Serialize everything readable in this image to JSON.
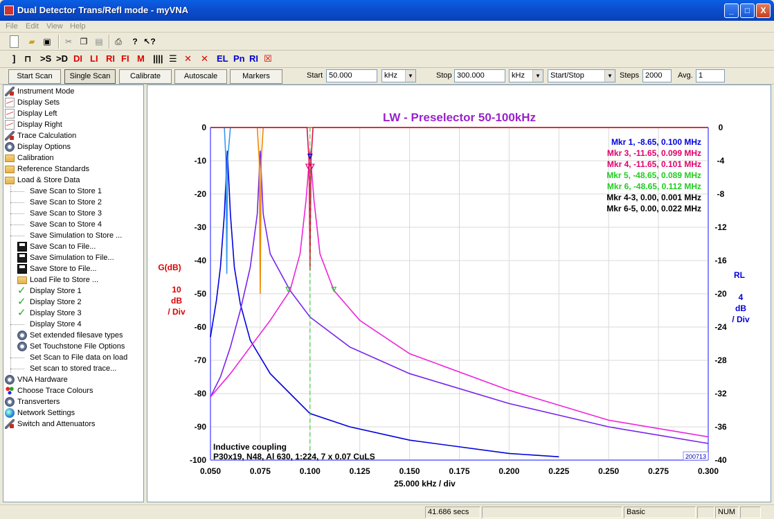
{
  "window": {
    "title": "Dual Detector Trans/Refl mode - myVNA",
    "min": "_",
    "max": "□",
    "close": "X"
  },
  "menu": [
    "File",
    "Edit",
    "View",
    "Help"
  ],
  "toolbar2": {
    "labels": [
      "DI",
      "LI",
      "RI",
      "FI",
      "M",
      "EL",
      "Pn",
      "RI"
    ],
    "s": ">S",
    "d": ">D"
  },
  "controls": {
    "start_scan": "Start Scan",
    "single_scan": "Single Scan",
    "calibrate": "Calibrate",
    "autoscale": "Autoscale",
    "markers": "Markers",
    "start_label": "Start",
    "start_value": "50.000",
    "start_unit": "kHz",
    "stop_label": "Stop",
    "stop_value": "300.000",
    "stop_unit": "kHz",
    "mode": "Start/Stop",
    "steps_label": "Steps",
    "steps_value": "2000",
    "avg_label": "Avg.",
    "avg_value": "1"
  },
  "tree": [
    {
      "label": "Instrument Mode",
      "icon": "wrench",
      "level": 0
    },
    {
      "label": "Display Sets",
      "icon": "graph",
      "level": 0
    },
    {
      "label": "Display Left",
      "icon": "graph",
      "level": 0
    },
    {
      "label": "Display Right",
      "icon": "graph",
      "level": 0
    },
    {
      "label": "Trace Calculation",
      "icon": "wrench",
      "level": 0
    },
    {
      "label": "Display Options",
      "icon": "gear",
      "level": 0
    },
    {
      "label": "Calibration",
      "icon": "folder",
      "level": 0
    },
    {
      "label": "Reference Standards",
      "icon": "folder",
      "level": 0
    },
    {
      "label": "Load & Store Data",
      "icon": "folder",
      "level": 0
    },
    {
      "label": "Save Scan to Store 1",
      "icon": "none",
      "level": 1
    },
    {
      "label": "Save Scan to Store 2",
      "icon": "none",
      "level": 1
    },
    {
      "label": "Save Scan to Store 3",
      "icon": "none",
      "level": 1
    },
    {
      "label": "Save Scan to Store 4",
      "icon": "none",
      "level": 1
    },
    {
      "label": "Save Simulation to Store ...",
      "icon": "none",
      "level": 1
    },
    {
      "label": "Save Scan to File...",
      "icon": "disk",
      "level": 1
    },
    {
      "label": "Save Simulation to File...",
      "icon": "disk",
      "level": 1
    },
    {
      "label": "Save Store to File...",
      "icon": "disk",
      "level": 1
    },
    {
      "label": "Load File to Store ...",
      "icon": "folder",
      "level": 1
    },
    {
      "label": "Display Store 1",
      "icon": "check",
      "level": 1
    },
    {
      "label": "Display Store 2",
      "icon": "check",
      "level": 1
    },
    {
      "label": "Display Store 3",
      "icon": "check",
      "level": 1
    },
    {
      "label": "Display Store 4",
      "icon": "none",
      "level": 1
    },
    {
      "label": "Set extended filesave types",
      "icon": "gear",
      "level": 1
    },
    {
      "label": "Set Touchstone File Options",
      "icon": "gear",
      "level": 1
    },
    {
      "label": "Set Scan to File data on load",
      "icon": "none",
      "level": 1
    },
    {
      "label": "Set scan to stored trace...",
      "icon": "none",
      "level": 1
    },
    {
      "label": "VNA Hardware",
      "icon": "gear",
      "level": 0
    },
    {
      "label": "Choose Trace Colours",
      "icon": "dots",
      "level": 0
    },
    {
      "label": "Transverters",
      "icon": "gear",
      "level": 0
    },
    {
      "label": "Network Settings",
      "icon": "globe",
      "level": 0
    },
    {
      "label": "Switch and Attenuators",
      "icon": "wrench",
      "level": 0
    }
  ],
  "chart_data": {
    "type": "line",
    "title": "LW - Preselector 50-100kHz",
    "xlabel": "25.000 kHz / div",
    "x_ticks": [
      "0.050",
      "0.075",
      "0.100",
      "0.125",
      "0.150",
      "0.175",
      "0.200",
      "0.225",
      "0.250",
      "0.275",
      "0.300"
    ],
    "xlim": [
      0.05,
      0.3
    ],
    "left_axis": {
      "label": "G(dB)",
      "scale": [
        "10",
        "dB",
        "/ Div"
      ],
      "ticks": [
        "0",
        "-10",
        "-20",
        "-30",
        "-40",
        "-50",
        "-60",
        "-70",
        "-80",
        "-90",
        "-100"
      ],
      "ylim": [
        -100,
        0
      ]
    },
    "right_axis": {
      "label": "RL",
      "scale": [
        "4",
        "dB",
        "/ Div"
      ],
      "ticks": [
        "0",
        "-4",
        "-8",
        "-12",
        "-16",
        "-20",
        "-24",
        "-28",
        "-32",
        "-36",
        "-40"
      ],
      "ylim": [
        -40,
        0
      ]
    },
    "markers": [
      {
        "text": "Mkr 1, -8.65, 0.100 MHz",
        "color": "#0000dd"
      },
      {
        "text": "Mkr 3, -11.65, 0.099 MHz",
        "color": "#e0006a"
      },
      {
        "text": "Mkr 4, -11.65, 0.101 MHz",
        "color": "#e0006a"
      },
      {
        "text": "Mkr 5, -48.65, 0.089 MHz",
        "color": "#22cc22"
      },
      {
        "text": "Mkr 6, -48.65, 0.112 MHz",
        "color": "#22cc22"
      },
      {
        "text": "Mkr 4-3, 0.00, 0.001 MHz",
        "color": "#000000"
      },
      {
        "text": "Mkr 6-5, 0.00, 0.022 MHz",
        "color": "#000000"
      }
    ],
    "series": [
      {
        "color": "#0000dd",
        "points": [
          [
            0.05,
            -63
          ],
          [
            0.053,
            -52
          ],
          [
            0.055,
            -42
          ],
          [
            0.057,
            -26
          ],
          [
            0.0585,
            -7
          ],
          [
            0.06,
            -26
          ],
          [
            0.062,
            -42
          ],
          [
            0.065,
            -53
          ],
          [
            0.07,
            -64
          ],
          [
            0.08,
            -74
          ],
          [
            0.09,
            -80
          ],
          [
            0.1,
            -86
          ],
          [
            0.12,
            -90
          ],
          [
            0.15,
            -94
          ],
          [
            0.2,
            -98
          ],
          [
            0.225,
            -99
          ]
        ]
      },
      {
        "color": "#7722ee",
        "points": [
          [
            0.05,
            -81
          ],
          [
            0.055,
            -75
          ],
          [
            0.06,
            -66
          ],
          [
            0.065,
            -55
          ],
          [
            0.07,
            -42
          ],
          [
            0.0735,
            -26
          ],
          [
            0.075,
            -7
          ],
          [
            0.0765,
            -26
          ],
          [
            0.08,
            -38
          ],
          [
            0.09,
            -49
          ],
          [
            0.1,
            -57
          ],
          [
            0.12,
            -66
          ],
          [
            0.15,
            -74
          ],
          [
            0.2,
            -83
          ],
          [
            0.25,
            -90
          ],
          [
            0.3,
            -95
          ]
        ]
      },
      {
        "color": "#ee22dd",
        "points": [
          [
            0.05,
            -81
          ],
          [
            0.06,
            -74
          ],
          [
            0.07,
            -66
          ],
          [
            0.08,
            -58
          ],
          [
            0.09,
            -49
          ],
          [
            0.095,
            -38
          ],
          [
            0.098,
            -22
          ],
          [
            0.1,
            -7
          ],
          [
            0.102,
            -22
          ],
          [
            0.105,
            -38
          ],
          [
            0.112,
            -49
          ],
          [
            0.125,
            -58
          ],
          [
            0.15,
            -68
          ],
          [
            0.2,
            -79
          ],
          [
            0.25,
            -88
          ],
          [
            0.3,
            -93
          ]
        ]
      },
      {
        "color": "#3399ee",
        "points": [
          [
            0.05,
            0
          ],
          [
            0.057,
            0
          ],
          [
            0.0578,
            -10
          ],
          [
            0.0582,
            -44
          ],
          [
            0.0586,
            -10
          ],
          [
            0.06,
            0
          ],
          [
            0.3,
            0
          ]
        ]
      },
      {
        "color": "#ee8800",
        "points": [
          [
            0.05,
            0
          ],
          [
            0.0735,
            0
          ],
          [
            0.0745,
            -10
          ],
          [
            0.075,
            -50
          ],
          [
            0.0755,
            -10
          ],
          [
            0.0765,
            0
          ],
          [
            0.3,
            0
          ]
        ]
      },
      {
        "color": "#dd1144",
        "points": [
          [
            0.05,
            0
          ],
          [
            0.0985,
            0
          ],
          [
            0.0995,
            -10
          ],
          [
            0.1,
            -43
          ],
          [
            0.1005,
            -10
          ],
          [
            0.1015,
            0
          ],
          [
            0.3,
            0
          ]
        ]
      }
    ],
    "annotation": [
      "Inductive coupling",
      "P30x19, N48, Al 630, 1:224, 7 x 0.07 CuLS"
    ],
    "stamp": "200713",
    "grid": true
  },
  "status": {
    "time": "41.686 secs",
    "mode": "Basic",
    "num": "NUM"
  }
}
